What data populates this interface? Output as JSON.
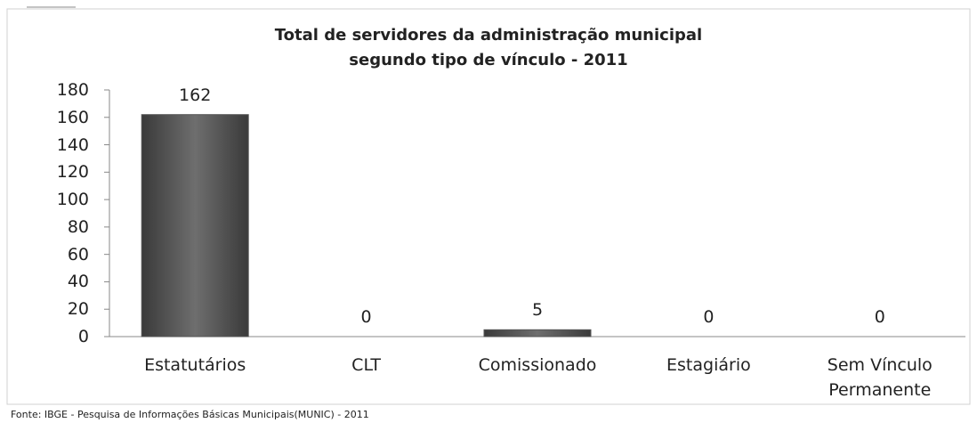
{
  "chart_data": {
    "type": "bar",
    "title": [
      "Total de servidores da administração municipal",
      "segundo tipo de vínculo - 2011"
    ],
    "categories": [
      "Estatutários",
      "CLT",
      "Comissionado",
      "Estagiário",
      "Sem Vínculo Permanente"
    ],
    "values": [
      162,
      0,
      5,
      0,
      0
    ],
    "color": "#555555",
    "ylim": [
      0,
      180
    ],
    "yticks": [
      0,
      20,
      40,
      60,
      80,
      100,
      120,
      140,
      160,
      180
    ],
    "grid": false,
    "source": "Fonte:  IBGE - Pesquisa de Informações Básicas Municipais(MUNIC) - 2011"
  }
}
